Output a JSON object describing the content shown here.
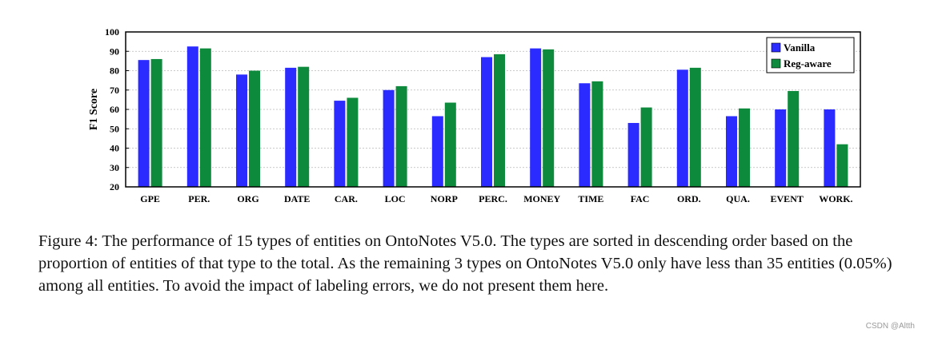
{
  "chart_data": {
    "type": "bar",
    "title": "",
    "xlabel": "",
    "ylabel": "F1 Score",
    "ylim": [
      20,
      100
    ],
    "yticks": [
      20,
      30,
      40,
      50,
      60,
      70,
      80,
      90,
      100
    ],
    "grid": true,
    "legend_position": "top-right",
    "categories": [
      "GPE",
      "PER.",
      "ORG",
      "DATE",
      "CAR.",
      "LOC",
      "NORP",
      "PERC.",
      "MONEY",
      "TIME",
      "FAC",
      "ORD.",
      "QUA.",
      "EVENT",
      "WORK."
    ],
    "series": [
      {
        "name": "Vanilla",
        "color": "#2b2bff",
        "values": [
          85.5,
          92.5,
          78,
          81.5,
          64.5,
          70,
          56.5,
          87,
          91.5,
          73.5,
          53,
          80.5,
          56.5,
          60,
          60
        ]
      },
      {
        "name": "Reg-aware",
        "color": "#0e8a3c",
        "values": [
          86,
          91.5,
          80,
          82,
          66,
          72,
          63.5,
          88.5,
          91,
          74.5,
          61,
          81.5,
          60.5,
          69.5,
          42
        ]
      }
    ]
  },
  "caption": "Figure 4: The performance of 15 types of entities on OntoNotes V5.0. The types are sorted in descending order based on the proportion of entities of that type to the total. As the remaining 3 types on OntoNotes V5.0 only have less than 35 entities (0.05%) among all entities. To avoid the impact of labeling errors, we do not present them here.",
  "watermark": "CSDN @Altth"
}
